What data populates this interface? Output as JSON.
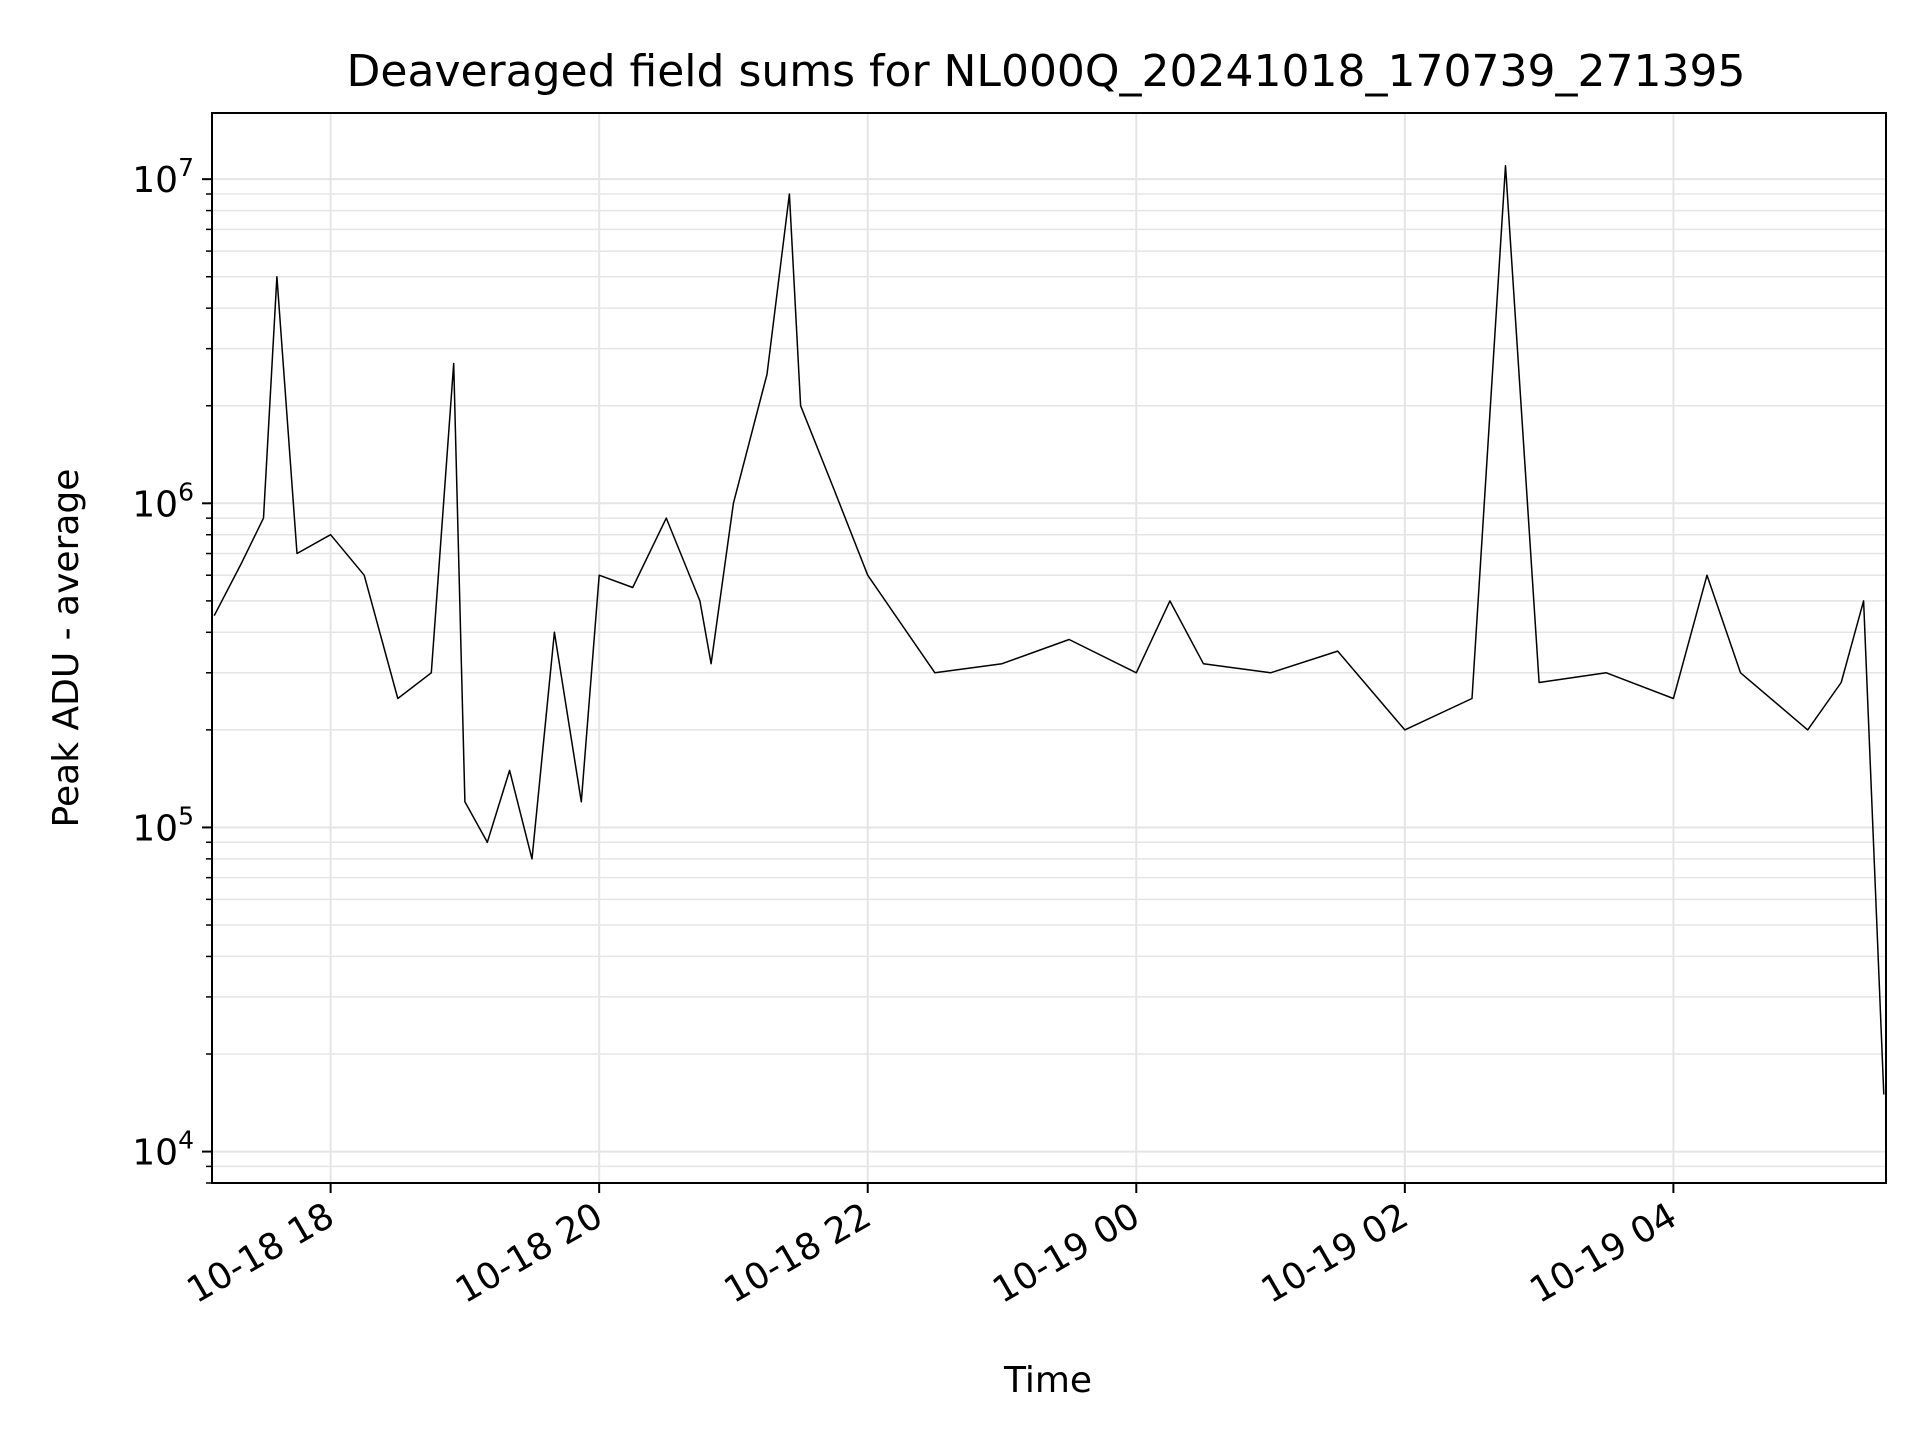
{
  "chart_data": {
    "type": "line",
    "title": "Deaveraged field sums for NL000Q_20241018_170739_271395",
    "xlabel": "Time",
    "ylabel": "Peak ADU - average",
    "yscale": "log",
    "grid": true,
    "x_tick_labels": [
      "10-18 18",
      "10-18 20",
      "10-18 22",
      "10-19 00",
      "10-19 02",
      "10-19 04"
    ],
    "y_ticks": [
      {
        "base": "10",
        "exp": "4"
      },
      {
        "base": "10",
        "exp": "5"
      },
      {
        "base": "10",
        "exp": "6"
      },
      {
        "base": "10",
        "exp": "7"
      }
    ],
    "xlim": [
      "2024-10-18 17:07",
      "2024-10-19 05:35"
    ],
    "ylim": [
      8000,
      16000000
    ],
    "line_color": "#000000",
    "grid_color": "#e5e5e5",
    "series": [
      {
        "x": [
          "2024-10-18 17:08",
          "2024-10-18 17:20",
          "2024-10-18 17:30",
          "2024-10-18 17:36",
          "2024-10-18 17:45",
          "2024-10-18 18:00",
          "2024-10-18 18:15",
          "2024-10-18 18:30",
          "2024-10-18 18:45",
          "2024-10-18 18:55",
          "2024-10-18 19:00",
          "2024-10-18 19:10",
          "2024-10-18 19:20",
          "2024-10-18 19:30",
          "2024-10-18 19:40",
          "2024-10-18 19:52",
          "2024-10-18 20:00",
          "2024-10-18 20:15",
          "2024-10-18 20:30",
          "2024-10-18 20:45",
          "2024-10-18 20:50",
          "2024-10-18 21:00",
          "2024-10-18 21:15",
          "2024-10-18 21:25",
          "2024-10-18 21:30",
          "2024-10-18 21:45",
          "2024-10-18 22:00",
          "2024-10-18 22:30",
          "2024-10-18 23:00",
          "2024-10-18 23:30",
          "2024-10-19 00:00",
          "2024-10-19 00:15",
          "2024-10-19 00:30",
          "2024-10-19 01:00",
          "2024-10-19 01:30",
          "2024-10-19 02:00",
          "2024-10-19 02:30",
          "2024-10-19 02:45",
          "2024-10-19 03:00",
          "2024-10-19 03:30",
          "2024-10-19 04:00",
          "2024-10-19 04:15",
          "2024-10-19 04:30",
          "2024-10-19 05:00",
          "2024-10-19 05:15",
          "2024-10-19 05:25",
          "2024-10-19 05:34"
        ],
        "y": [
          450000,
          650000,
          900000,
          5000000,
          700000,
          800000,
          600000,
          250000,
          300000,
          2700000,
          120000,
          90000,
          150000,
          80000,
          400000,
          120000,
          600000,
          550000,
          900000,
          500000,
          320000,
          1000000,
          2500000,
          9000000,
          2000000,
          1100000,
          600000,
          300000,
          320000,
          380000,
          300000,
          500000,
          320000,
          300000,
          350000,
          200000,
          250000,
          11000000,
          280000,
          300000,
          250000,
          600000,
          300000,
          200000,
          280000,
          500000,
          15000
        ]
      }
    ]
  }
}
